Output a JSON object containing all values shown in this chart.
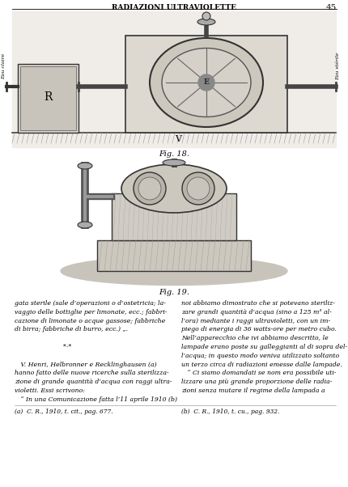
{
  "background_color": "#ffffff",
  "header_text": "RADIAZIONI ULTRAVIOLETTE",
  "page_number": "45",
  "fig18_caption": "Fig. 18.",
  "fig19_caption": "Fig. 19.",
  "left_col_text": [
    "gata sterile (sale d’operazioni o d’ostetricia; la-",
    "vaggio delle bottiglie per limonate, ecc.; fabbri-",
    "cazione di limonate o acque gassose; fabbriche",
    "di birra; fabbriche di burro, ecc.) „.",
    "",
    "                        *·*",
    "",
    "   V. Henri, Helbronner e Recklinghausen (a)",
    "hanno fatto delle nuove ricerche sulla sterilizza-",
    "zione di grande quantità d’acqua con raggi ultra-",
    "violetti. Essi scrivono:",
    "   “ In una Comunicazione fatta l’11 aprile 1910 (b)"
  ],
  "right_col_text": [
    "noi abbiamo dimostrato che si potevano steriliz-",
    "zare grandi quantità d’acqua (sino a 125 m³ al-",
    "l’ora) mediante i raggi ultravioletti, con un im-",
    "piego di energia di 36 watts-ore per metro cubo.",
    "Nell’apparecchio che ivi abbiamo descritto, le",
    "lampade erano poste su galleggianti al di sopra del-",
    "l’acqua; in questo modo veniva utilizzato soltanto",
    "un terzo circa di radiazioni emesse dalle lampade.",
    "   “ Ci siamo domandati se nom era possibile uti-",
    "lizzare una più grande proporzione delle radia-",
    "zioni senza mutare il regime della lampada a"
  ],
  "footnote_left": "(a)  C. R., 1910, t. cit., pag. 677.",
  "footnote_right": "(b)  C. R., 1910, t. cu., pag. 932."
}
